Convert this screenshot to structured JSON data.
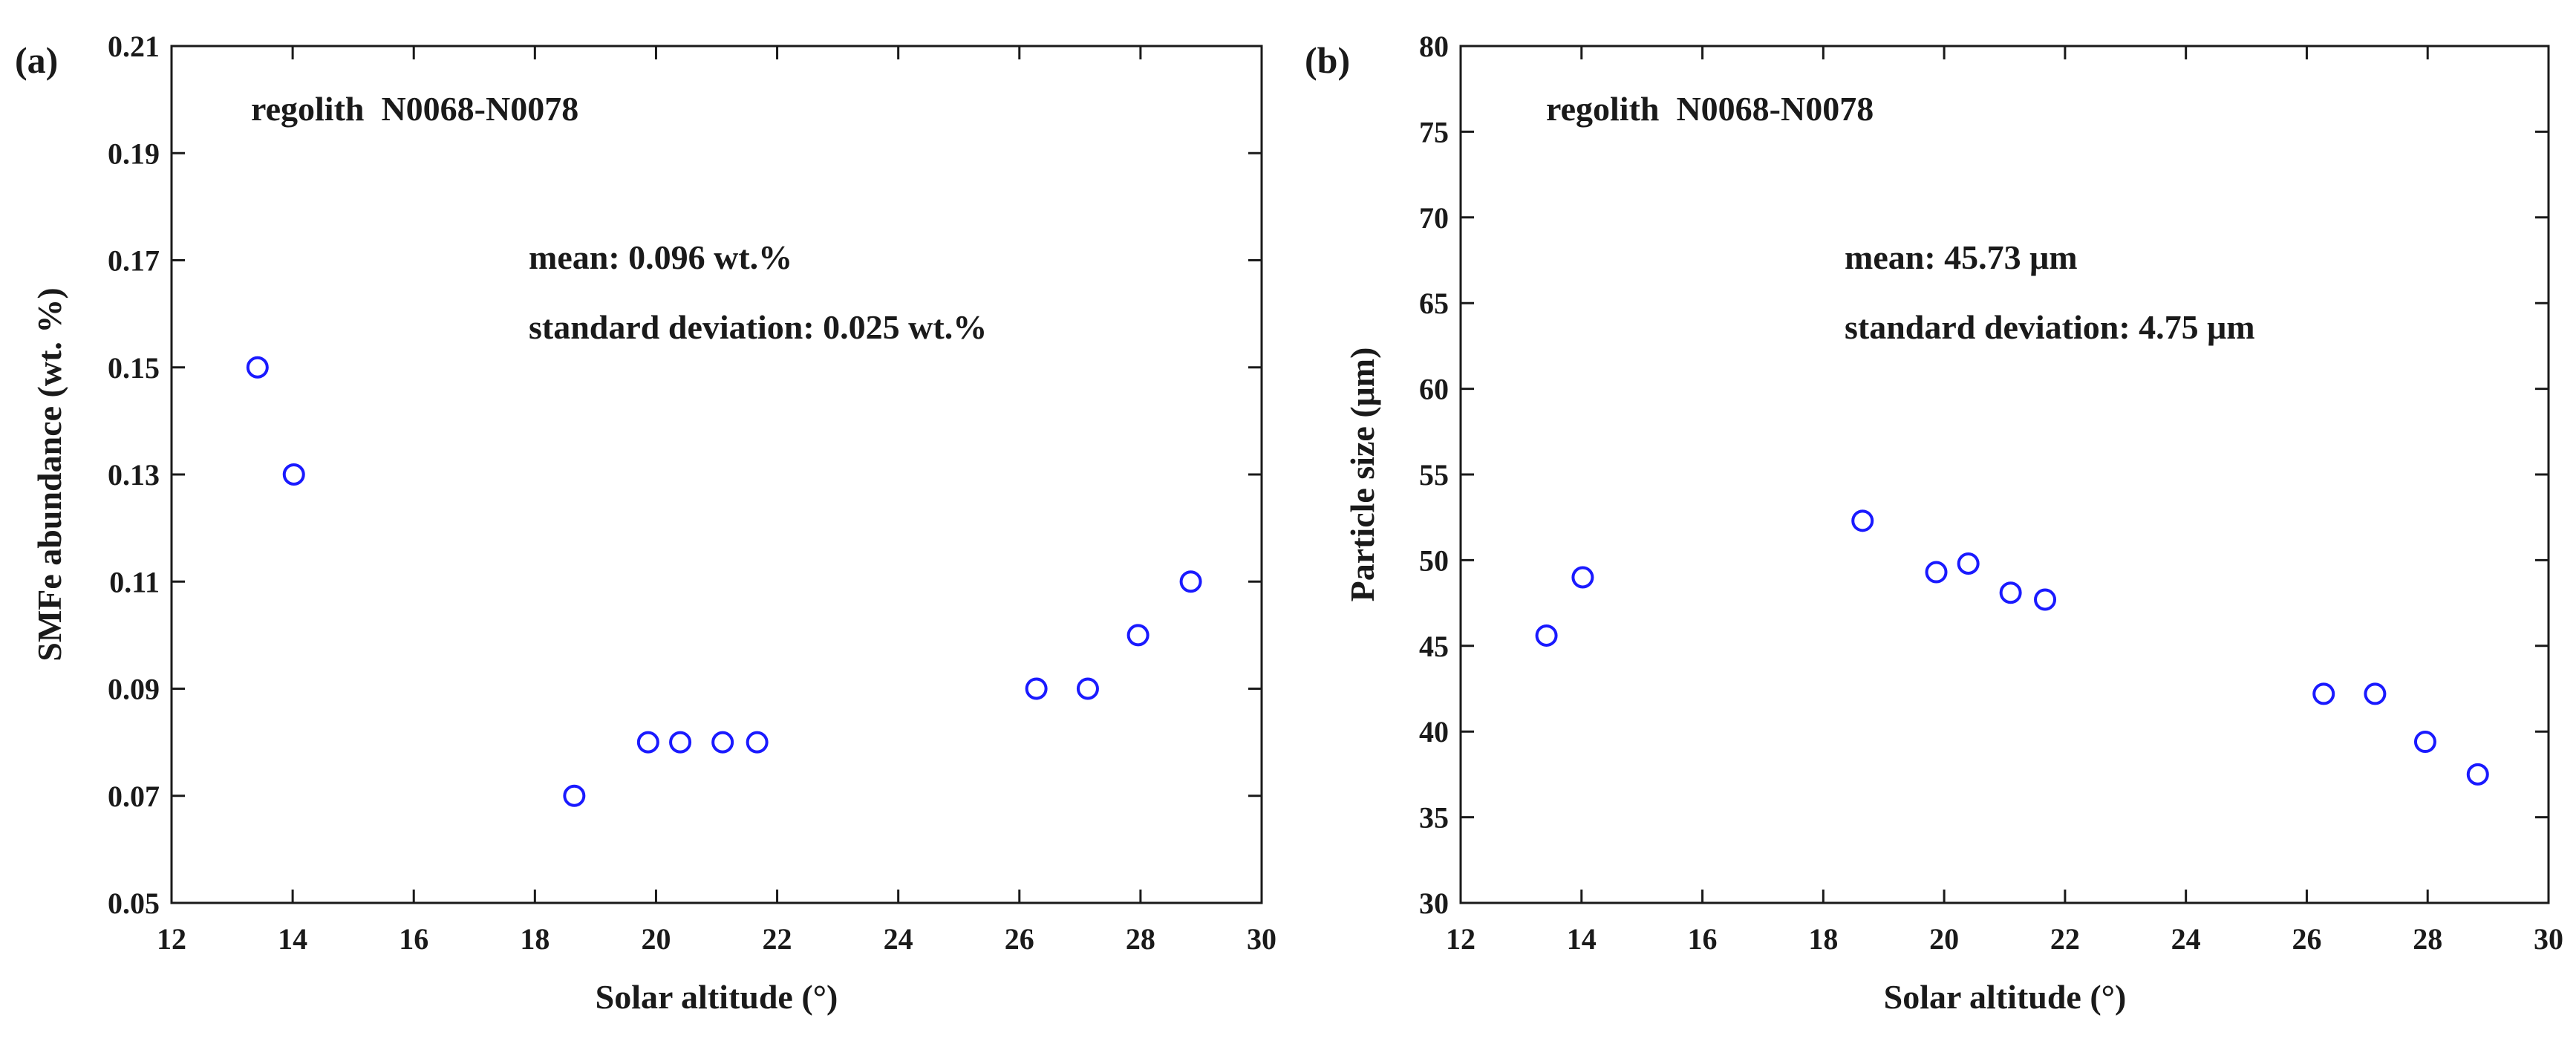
{
  "chart_data": [
    {
      "type": "scatter",
      "panel_label": "(a)",
      "title": "",
      "xlabel": "Solar altitude (°)",
      "ylabel": "SMFe abundance (wt. %)",
      "xlim": [
        12,
        30
      ],
      "ylim": [
        0.05,
        0.21
      ],
      "xticks": [
        "12",
        "14",
        "16",
        "18",
        "20",
        "22",
        "24",
        "26",
        "28",
        "30"
      ],
      "yticks": [
        "0.05",
        "0.07",
        "0.09",
        "0.11",
        "0.13",
        "0.15",
        "0.17",
        "0.19",
        "0.21"
      ],
      "sample_label": "regolith  N0068-N0078",
      "mean_text": "mean: 0.096 wt.%",
      "std_text": "standard deviation: 0.025 wt.%",
      "marker_color": "#1a1aff",
      "points": {
        "x": [
          13.42,
          14.02,
          18.65,
          19.87,
          20.4,
          21.1,
          21.67,
          26.28,
          27.13,
          27.96,
          28.83
        ],
        "y": [
          0.15,
          0.13,
          0.07,
          0.08,
          0.08,
          0.08,
          0.08,
          0.09,
          0.09,
          0.1,
          0.11
        ]
      }
    },
    {
      "type": "scatter",
      "panel_label": "(b)",
      "title": "",
      "xlabel": "Solar altitude (°)",
      "ylabel": "Particle size (μm)",
      "xlim": [
        12,
        30
      ],
      "ylim": [
        30,
        80
      ],
      "xticks": [
        "12",
        "14",
        "16",
        "18",
        "20",
        "22",
        "24",
        "26",
        "28",
        "30"
      ],
      "yticks": [
        "30",
        "35",
        "40",
        "45",
        "50",
        "55",
        "60",
        "65",
        "70",
        "75",
        "80"
      ],
      "sample_label": "regolith  N0068-N0078",
      "mean_text": "mean: 45.73 μm",
      "std_text": "standard deviation: 4.75 μm",
      "marker_color": "#1a1aff",
      "points": {
        "x": [
          13.42,
          14.02,
          18.65,
          19.87,
          20.4,
          21.1,
          21.67,
          26.28,
          27.13,
          27.96,
          28.83
        ],
        "y": [
          45.6,
          49.0,
          52.3,
          49.3,
          49.8,
          48.1,
          47.7,
          42.2,
          42.2,
          39.4,
          37.5
        ]
      }
    }
  ]
}
